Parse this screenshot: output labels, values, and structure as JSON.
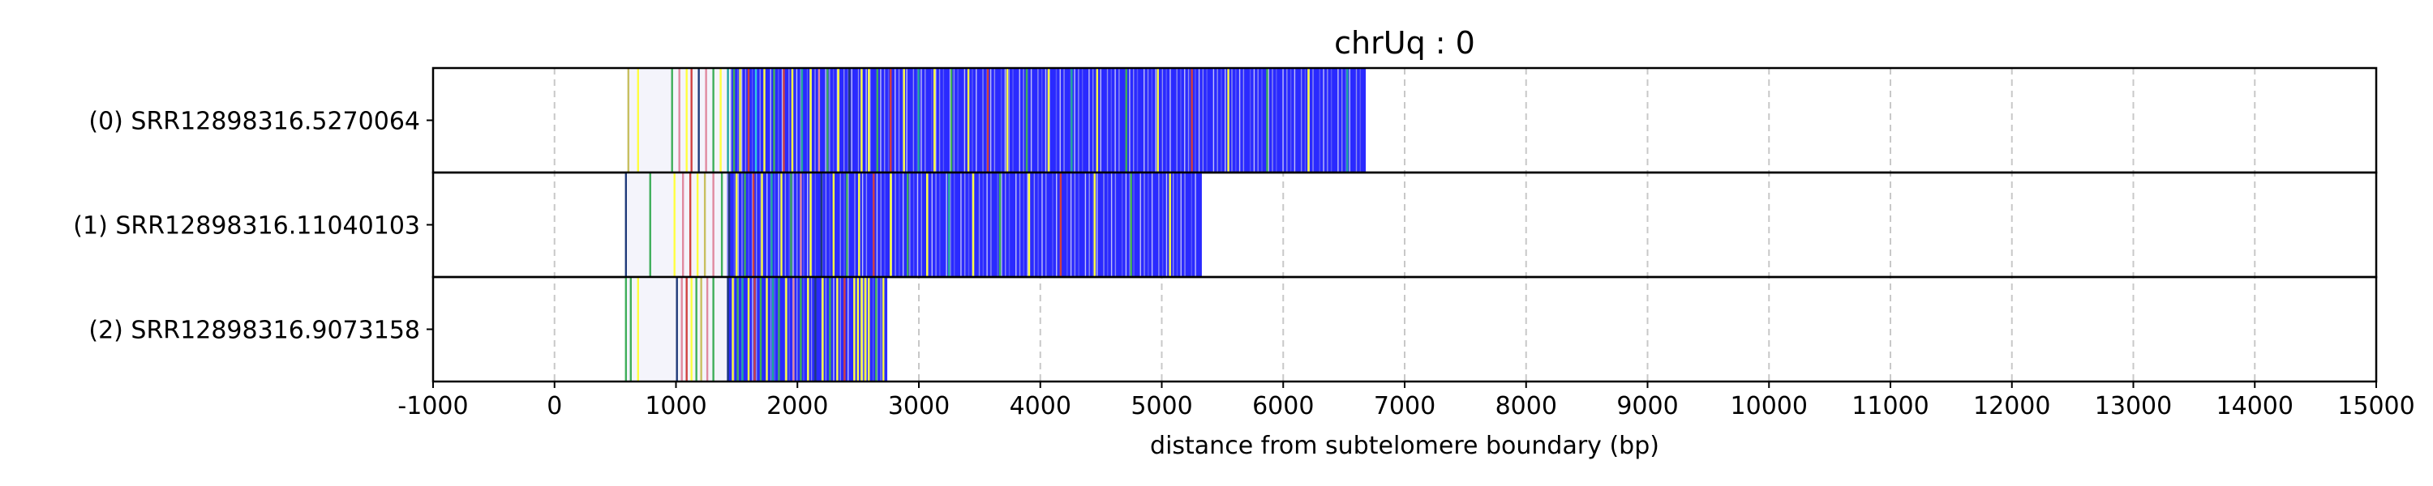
{
  "chart_data": {
    "type": "heatmap",
    "title": "chrUq : 0",
    "xlabel": "distance from subtelomere boundary (bp)",
    "ylabel": "",
    "xlim": [
      -1000,
      15000
    ],
    "xticks": [
      -1000,
      0,
      1000,
      2000,
      3000,
      4000,
      5000,
      6000,
      7000,
      8000,
      9000,
      10000,
      11000,
      12000,
      13000,
      14000,
      15000
    ],
    "xtick_labels": [
      "-1000",
      "0",
      "1000",
      "2000",
      "3000",
      "4000",
      "5000",
      "6000",
      "7000",
      "8000",
      "9000",
      "10000",
      "11000",
      "12000",
      "13000",
      "14000",
      "15000"
    ],
    "grid": "x dashed",
    "colors": {
      "dense": "#2a2aff",
      "blue": "#2020ff",
      "navy": "#1f3a7a",
      "yellow": "#ffff40",
      "green": "#3fae5a",
      "teal": "#1fa6a0",
      "red": "#d04040",
      "pink": "#e08aa0",
      "olive": "#c8c060",
      "cyan": "#30c8e0"
    },
    "reads": [
      {
        "label": "(0) SRR12898316.5270064",
        "start": 600,
        "end": 6680,
        "dense_start": 1450,
        "dense_end": 6680,
        "marks": [
          {
            "x": 600,
            "c": "olive"
          },
          {
            "x": 680,
            "c": "yellow"
          },
          {
            "x": 960,
            "c": "green"
          },
          {
            "x": 1020,
            "c": "pink"
          },
          {
            "x": 1080,
            "c": "yellow"
          },
          {
            "x": 1120,
            "c": "red"
          },
          {
            "x": 1180,
            "c": "navy"
          },
          {
            "x": 1240,
            "c": "pink"
          },
          {
            "x": 1300,
            "c": "green"
          },
          {
            "x": 1360,
            "c": "yellow"
          },
          {
            "x": 1420,
            "c": "teal"
          },
          {
            "x": 1470,
            "c": "green"
          },
          {
            "x": 1520,
            "c": "yellow"
          },
          {
            "x": 1590,
            "c": "red"
          },
          {
            "x": 1650,
            "c": "cyan"
          },
          {
            "x": 1720,
            "c": "yellow"
          },
          {
            "x": 1800,
            "c": "green"
          },
          {
            "x": 1880,
            "c": "red"
          },
          {
            "x": 1950,
            "c": "yellow"
          },
          {
            "x": 2030,
            "c": "teal"
          },
          {
            "x": 2100,
            "c": "yellow"
          },
          {
            "x": 2170,
            "c": "pink"
          },
          {
            "x": 2240,
            "c": "green"
          },
          {
            "x": 2330,
            "c": "yellow"
          },
          {
            "x": 2420,
            "c": "navy"
          },
          {
            "x": 2520,
            "c": "yellow"
          },
          {
            "x": 2580,
            "c": "yellow"
          },
          {
            "x": 2650,
            "c": "green"
          },
          {
            "x": 2760,
            "c": "red"
          },
          {
            "x": 2870,
            "c": "yellow"
          },
          {
            "x": 2990,
            "c": "teal"
          },
          {
            "x": 3120,
            "c": "yellow"
          },
          {
            "x": 3260,
            "c": "green"
          },
          {
            "x": 3400,
            "c": "yellow"
          },
          {
            "x": 3560,
            "c": "red"
          },
          {
            "x": 3720,
            "c": "yellow"
          },
          {
            "x": 3880,
            "c": "green"
          },
          {
            "x": 4060,
            "c": "yellow"
          },
          {
            "x": 4250,
            "c": "teal"
          },
          {
            "x": 4460,
            "c": "yellow"
          },
          {
            "x": 4700,
            "c": "green"
          },
          {
            "x": 4960,
            "c": "yellow"
          },
          {
            "x": 5240,
            "c": "red"
          },
          {
            "x": 5540,
            "c": "yellow"
          },
          {
            "x": 5860,
            "c": "green"
          },
          {
            "x": 6200,
            "c": "yellow"
          },
          {
            "x": 6520,
            "c": "teal"
          }
        ]
      },
      {
        "label": "(1) SRR12898316.11040103",
        "start": 580,
        "end": 5330,
        "dense_start": 1420,
        "dense_end": 5330,
        "marks": [
          {
            "x": 580,
            "c": "navy"
          },
          {
            "x": 780,
            "c": "green"
          },
          {
            "x": 980,
            "c": "yellow"
          },
          {
            "x": 1050,
            "c": "pink"
          },
          {
            "x": 1110,
            "c": "red"
          },
          {
            "x": 1170,
            "c": "yellow"
          },
          {
            "x": 1230,
            "c": "olive"
          },
          {
            "x": 1300,
            "c": "pink"
          },
          {
            "x": 1370,
            "c": "green"
          },
          {
            "x": 1430,
            "c": "navy"
          },
          {
            "x": 1490,
            "c": "yellow"
          },
          {
            "x": 1560,
            "c": "green"
          },
          {
            "x": 1630,
            "c": "red"
          },
          {
            "x": 1700,
            "c": "yellow"
          },
          {
            "x": 1780,
            "c": "teal"
          },
          {
            "x": 1860,
            "c": "yellow"
          },
          {
            "x": 1940,
            "c": "green"
          },
          {
            "x": 2020,
            "c": "pink"
          },
          {
            "x": 2100,
            "c": "yellow"
          },
          {
            "x": 2190,
            "c": "navy"
          },
          {
            "x": 2290,
            "c": "yellow"
          },
          {
            "x": 2400,
            "c": "green"
          },
          {
            "x": 2500,
            "c": "yellow"
          },
          {
            "x": 2620,
            "c": "red"
          },
          {
            "x": 2760,
            "c": "yellow"
          },
          {
            "x": 2900,
            "c": "green"
          },
          {
            "x": 3060,
            "c": "yellow"
          },
          {
            "x": 3240,
            "c": "teal"
          },
          {
            "x": 3440,
            "c": "yellow"
          },
          {
            "x": 3660,
            "c": "green"
          },
          {
            "x": 3900,
            "c": "yellow"
          },
          {
            "x": 4160,
            "c": "red"
          },
          {
            "x": 4440,
            "c": "yellow"
          },
          {
            "x": 4740,
            "c": "green"
          },
          {
            "x": 5060,
            "c": "yellow"
          }
        ]
      },
      {
        "label": "(2) SRR12898316.9073158",
        "start": 580,
        "end": 2740,
        "dense_start": 1420,
        "dense_end": 2740,
        "marks": [
          {
            "x": 580,
            "c": "green"
          },
          {
            "x": 620,
            "c": "green"
          },
          {
            "x": 680,
            "c": "yellow"
          },
          {
            "x": 1000,
            "c": "navy"
          },
          {
            "x": 1040,
            "c": "pink"
          },
          {
            "x": 1080,
            "c": "red"
          },
          {
            "x": 1120,
            "c": "yellow"
          },
          {
            "x": 1160,
            "c": "green"
          },
          {
            "x": 1200,
            "c": "olive"
          },
          {
            "x": 1250,
            "c": "pink"
          },
          {
            "x": 1300,
            "c": "green"
          },
          {
            "x": 1420,
            "c": "navy"
          },
          {
            "x": 1460,
            "c": "yellow"
          },
          {
            "x": 1500,
            "c": "green"
          },
          {
            "x": 1540,
            "c": "teal"
          },
          {
            "x": 1590,
            "c": "yellow"
          },
          {
            "x": 1640,
            "c": "red"
          },
          {
            "x": 1690,
            "c": "green"
          },
          {
            "x": 1740,
            "c": "yellow"
          },
          {
            "x": 1790,
            "c": "teal"
          },
          {
            "x": 1840,
            "c": "green"
          },
          {
            "x": 1900,
            "c": "yellow"
          },
          {
            "x": 1960,
            "c": "pink"
          },
          {
            "x": 2020,
            "c": "green"
          },
          {
            "x": 2080,
            "c": "yellow"
          },
          {
            "x": 2140,
            "c": "navy"
          },
          {
            "x": 2200,
            "c": "yellow"
          },
          {
            "x": 2260,
            "c": "green"
          },
          {
            "x": 2320,
            "c": "yellow"
          },
          {
            "x": 2380,
            "c": "red"
          },
          {
            "x": 2460,
            "c": "yellow"
          },
          {
            "x": 2490,
            "c": "yellow"
          },
          {
            "x": 2520,
            "c": "yellow"
          },
          {
            "x": 2550,
            "c": "yellow"
          },
          {
            "x": 2580,
            "c": "yellow"
          },
          {
            "x": 2640,
            "c": "green"
          },
          {
            "x": 2700,
            "c": "yellow"
          }
        ]
      }
    ]
  }
}
